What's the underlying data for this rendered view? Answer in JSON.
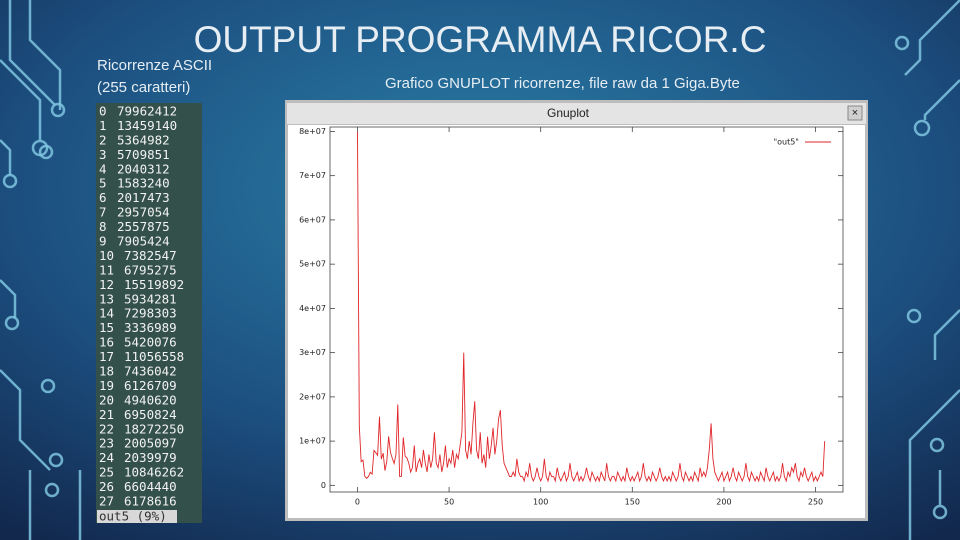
{
  "slide": {
    "title": "OUTPUT PROGRAMMA RICOR.C",
    "left_label_1": "Ricorrenze ASCII",
    "left_label_2": "(255 caratteri)",
    "right_label": "Grafico GNUPLOT ricorrenze, file raw da 1 Giga.Byte"
  },
  "terminal": {
    "status": "out5  (9%)",
    "rows": 28
  },
  "window": {
    "title": "Gnuplot",
    "button": "×"
  },
  "chart_data": {
    "type": "line",
    "x": [
      0,
      1,
      2,
      3,
      4,
      5,
      6,
      7,
      8,
      9,
      10,
      11,
      12,
      13,
      14,
      15,
      16,
      17,
      18,
      19,
      20,
      21,
      22,
      23,
      24,
      25,
      26,
      27,
      28,
      29,
      30,
      31,
      32,
      33,
      34,
      35,
      36,
      37,
      38,
      39,
      40,
      41,
      42,
      43,
      44,
      45,
      46,
      47,
      48,
      49,
      50,
      51,
      52,
      53,
      54,
      55,
      56,
      57,
      58,
      59,
      60,
      61,
      62,
      63,
      64,
      65,
      66,
      67,
      68,
      69,
      70,
      71,
      72,
      73,
      74,
      75,
      76,
      77,
      78,
      79,
      80,
      81,
      82,
      83,
      84,
      85,
      86,
      87,
      88,
      89,
      90,
      91,
      92,
      93,
      94,
      95,
      96,
      97,
      98,
      99,
      100,
      101,
      102,
      103,
      104,
      105,
      106,
      107,
      108,
      109,
      110,
      111,
      112,
      113,
      114,
      115,
      116,
      117,
      118,
      119,
      120,
      121,
      122,
      123,
      124,
      125,
      126,
      127,
      128,
      129,
      130,
      131,
      132,
      133,
      134,
      135,
      136,
      137,
      138,
      139,
      140,
      141,
      142,
      143,
      144,
      145,
      146,
      147,
      148,
      149,
      150,
      151,
      152,
      153,
      154,
      155,
      156,
      157,
      158,
      159,
      160,
      161,
      162,
      163,
      164,
      165,
      166,
      167,
      168,
      169,
      170,
      171,
      172,
      173,
      174,
      175,
      176,
      177,
      178,
      179,
      180,
      181,
      182,
      183,
      184,
      185,
      186,
      187,
      188,
      189,
      190,
      191,
      192,
      193,
      194,
      195,
      196,
      197,
      198,
      199,
      200,
      201,
      202,
      203,
      204,
      205,
      206,
      207,
      208,
      209,
      210,
      211,
      212,
      213,
      214,
      215,
      216,
      217,
      218,
      219,
      220,
      221,
      222,
      223,
      224,
      225,
      226,
      227,
      228,
      229,
      230,
      231,
      232,
      233,
      234,
      235,
      236,
      237,
      238,
      239,
      240,
      241,
      242,
      243,
      244,
      245,
      246,
      247,
      248,
      249,
      250,
      251,
      252,
      253,
      254,
      255
    ],
    "series": [
      {
        "name": "\"out5\"",
        "color": "#e0262a",
        "values": [
          79962412,
          13459140,
          5364982,
          5709851,
          2040312,
          1583240,
          2017473,
          2957054,
          2557875,
          7905424,
          7382547,
          6795275,
          15519892,
          5934281,
          7298303,
          3336989,
          5420076,
          11056558,
          7436042,
          6126709,
          4940620,
          6950824,
          18272250,
          2005097,
          2039979,
          10846262,
          6604440,
          6178616,
          5000000,
          3000000,
          4000000,
          9000000,
          3000000,
          5000000,
          6000000,
          4000000,
          8000000,
          5000000,
          3000000,
          7000000,
          4000000,
          6000000,
          12000000,
          5000000,
          4000000,
          7000000,
          3000000,
          5000000,
          9000000,
          4000000,
          6000000,
          5000000,
          8000000,
          4000000,
          7000000,
          6000000,
          9000000,
          12000000,
          30000000,
          8000000,
          6000000,
          10000000,
          7000000,
          14000000,
          19000000,
          8000000,
          6000000,
          12000000,
          5000000,
          7000000,
          4000000,
          11000000,
          6000000,
          9000000,
          13000000,
          7000000,
          10000000,
          15000000,
          17000000,
          9000000,
          5000000,
          4000000,
          3000000,
          2000000,
          2000000,
          3000000,
          2000000,
          6000000,
          3000000,
          2000000,
          2000000,
          1000000,
          3000000,
          2000000,
          5000000,
          2000000,
          1000000,
          2000000,
          4000000,
          2000000,
          1000000,
          2000000,
          6000000,
          2000000,
          1000000,
          3000000,
          2000000,
          2000000,
          1000000,
          4000000,
          2000000,
          1000000,
          2000000,
          3000000,
          1000000,
          2000000,
          5000000,
          2000000,
          1000000,
          2000000,
          3000000,
          1000000,
          2000000,
          1000000,
          2000000,
          4000000,
          2000000,
          1000000,
          3000000,
          2000000,
          1000000,
          2000000,
          1000000,
          3000000,
          2000000,
          1000000,
          5000000,
          2000000,
          1000000,
          2000000,
          2000000,
          1000000,
          3000000,
          2000000,
          1000000,
          2000000,
          1000000,
          4000000,
          2000000,
          1000000,
          2000000,
          1000000,
          2000000,
          3000000,
          1000000,
          2000000,
          5000000,
          2000000,
          1000000,
          2000000,
          1000000,
          3000000,
          2000000,
          1000000,
          2000000,
          4000000,
          2000000,
          1000000,
          2000000,
          1000000,
          2000000,
          1000000,
          3000000,
          2000000,
          1000000,
          2000000,
          5000000,
          2000000,
          1000000,
          3000000,
          2000000,
          1000000,
          2000000,
          1000000,
          3000000,
          2000000,
          1000000,
          4000000,
          2000000,
          3000000,
          2000000,
          4000000,
          8000000,
          14000000,
          6000000,
          3000000,
          2000000,
          1000000,
          2000000,
          3000000,
          1000000,
          2000000,
          3000000,
          1000000,
          2000000,
          4000000,
          2000000,
          1000000,
          3000000,
          2000000,
          1000000,
          2000000,
          5000000,
          2000000,
          1000000,
          3000000,
          2000000,
          1000000,
          2000000,
          1000000,
          3000000,
          2000000,
          1000000,
          4000000,
          2000000,
          1000000,
          2000000,
          3000000,
          1000000,
          2000000,
          1000000,
          2000000,
          5000000,
          2000000,
          1000000,
          3000000,
          2000000,
          4000000,
          3000000,
          5000000,
          2000000,
          1000000,
          3000000,
          2000000,
          4000000,
          2000000,
          1000000,
          2000000,
          3000000,
          1000000,
          2000000,
          1000000,
          2000000,
          3000000,
          2000000,
          10000000
        ]
      }
    ],
    "xlim": [
      -15,
      265
    ],
    "xticks": [
      0,
      50,
      100,
      150,
      200,
      250
    ],
    "ylim": [
      -1500000,
      81000000
    ],
    "yticks": [
      0,
      {
        "value": 10000000,
        "label": "1e+07"
      },
      {
        "value": 20000000,
        "label": "2e+07"
      },
      {
        "value": 30000000,
        "label": "3e+07"
      },
      {
        "value": 40000000,
        "label": "4e+07"
      },
      {
        "value": 50000000,
        "label": "5e+07"
      },
      {
        "value": 60000000,
        "label": "6e+07"
      },
      {
        "value": 70000000,
        "label": "7e+07"
      },
      {
        "value": 80000000,
        "label": "8e+07"
      }
    ],
    "grid": false,
    "legend": "top-right"
  }
}
